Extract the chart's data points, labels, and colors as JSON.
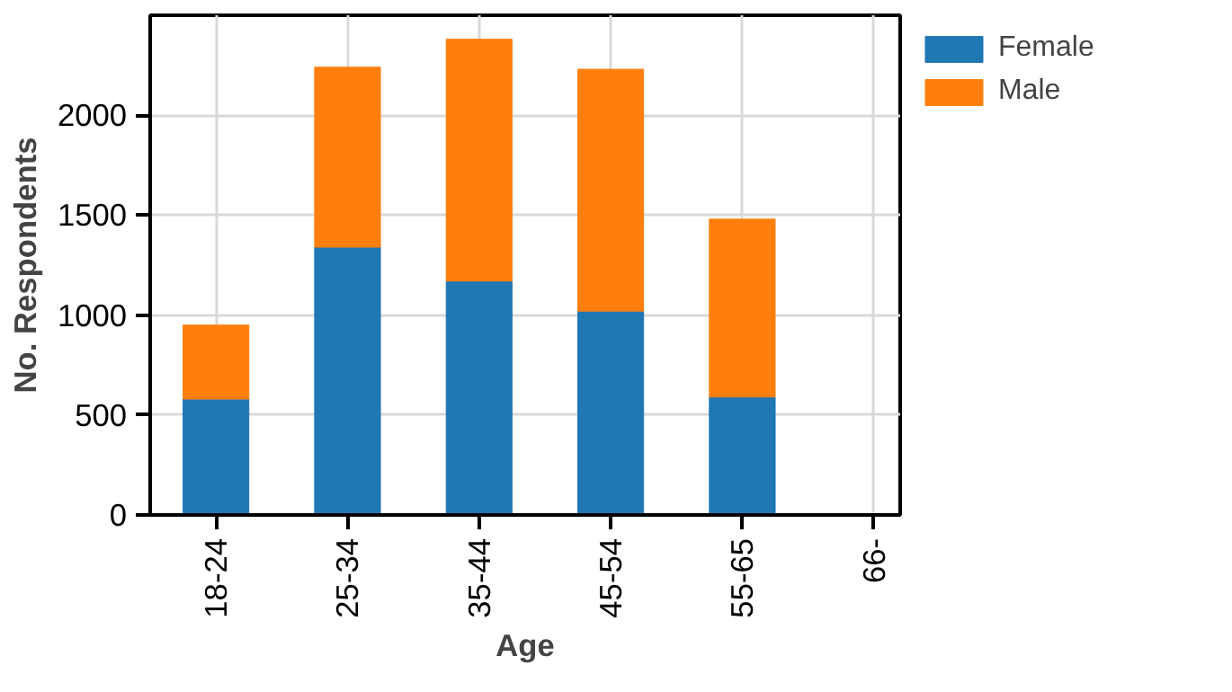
{
  "chart_data": {
    "type": "bar",
    "stacked": true,
    "xlabel": "Age",
    "ylabel": "No. Respondents",
    "categories": [
      "18-24",
      "25-34",
      "35-44",
      "45-54",
      "55-65",
      "66-"
    ],
    "series": [
      {
        "name": "Female",
        "color": "#1f77b4",
        "values": [
          580,
          1340,
          1170,
          1020,
          590,
          0
        ]
      },
      {
        "name": "Male",
        "color": "#ff7f0e",
        "values": [
          370,
          900,
          1210,
          1210,
          890,
          0
        ]
      }
    ],
    "ylim": [
      0,
      2500
    ],
    "yticks": [
      0,
      500,
      1000,
      1500,
      2000
    ],
    "grid": true,
    "legend": "right"
  }
}
